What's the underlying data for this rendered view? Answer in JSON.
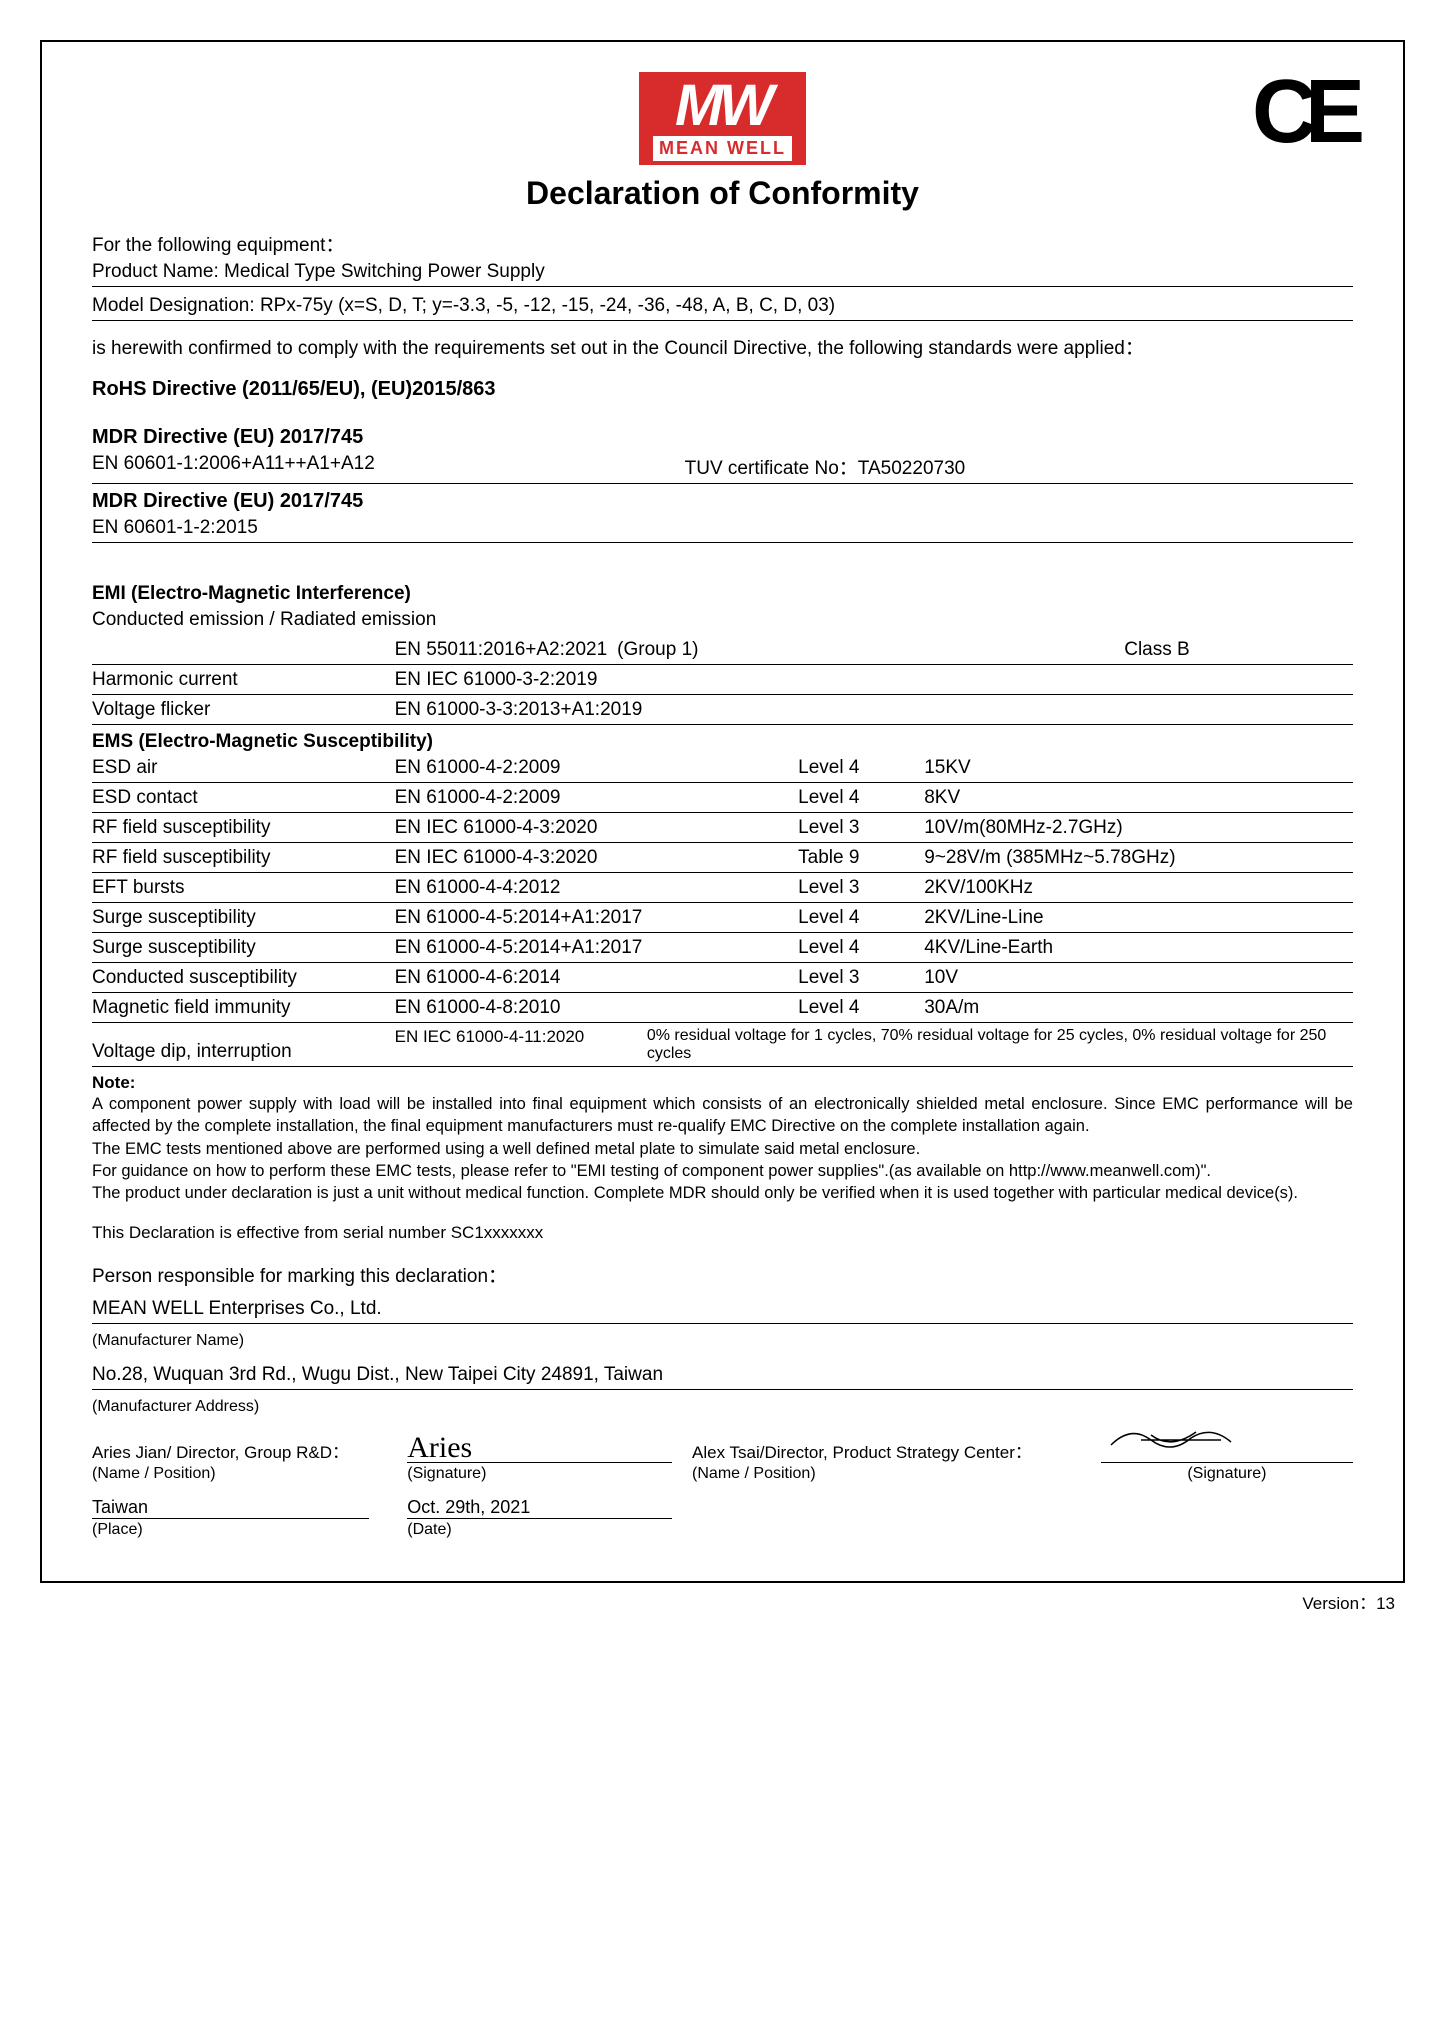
{
  "header": {
    "logo_mw": "MW",
    "logo_meanwell": "MEAN WELL",
    "ce": "CE"
  },
  "title": "Declaration of Conformity",
  "intro": "For the following equipment：",
  "product_name_label": "Product Name: ",
  "product_name": "Medical Type Switching Power Supply",
  "model_label": "Model Designation: ",
  "model": "RPx-75y (x=S, D, T; y=-3.3, -5, -12, -15, -24, -36, -48, A, B, C, D, 03)",
  "compliance": "is herewith confirmed to comply with the requirements set out in the Council Directive, the following standards were applied：",
  "rohs_heading": "RoHS Directive (2011/65/EU), (EU)2015/863",
  "mdr1": {
    "heading": "MDR Directive (EU) 2017/745",
    "std": "EN 60601-1:2006+A11++A1+A12",
    "cert": "TUV certificate No：TA50220730"
  },
  "mdr2": {
    "heading": "MDR Directive (EU) 2017/745",
    "std": "EN 60601-1-2:2015"
  },
  "emi": {
    "heading": "EMI (Electro-Magnetic Interference)",
    "conducted": "Conducted emission / Radiated emission",
    "row1_std": "EN 55011:2016+A2:2021",
    "row1_group": "(Group 1)",
    "row1_class": "Class B",
    "harmonic_label": "Harmonic current",
    "harmonic_std": "EN IEC 61000-3-2:2019",
    "flicker_label": "Voltage flicker",
    "flicker_std": "EN 61000-3-3:2013+A1:2019"
  },
  "ems": {
    "heading": "EMS (Electro-Magnetic Susceptibility)",
    "rows": [
      {
        "name": "ESD air",
        "std": "EN 61000-4-2:2009",
        "level": "Level 4",
        "val": "15KV"
      },
      {
        "name": "ESD contact",
        "std": "EN 61000-4-2:2009",
        "level": "Level 4",
        "val": "8KV"
      },
      {
        "name": "RF field susceptibility",
        "std": "EN IEC 61000-4-3:2020",
        "level": "Level 3",
        "val": "10V/m(80MHz-2.7GHz)"
      },
      {
        "name": "RF field susceptibility",
        "std": "EN IEC 61000-4-3:2020",
        "level": "Table 9",
        "val": "9~28V/m (385MHz~5.78GHz)"
      },
      {
        "name": "EFT bursts",
        "std": "EN 61000-4-4:2012",
        "level": "Level 3",
        "val": "2KV/100KHz"
      },
      {
        "name": "Surge susceptibility",
        "std": "EN 61000-4-5:2014+A1:2017",
        "level": "Level 4",
        "val": "2KV/Line-Line"
      },
      {
        "name": "Surge susceptibility",
        "std": "EN 61000-4-5:2014+A1:2017",
        "level": "Level 4",
        "val": "4KV/Line-Earth"
      },
      {
        "name": "Conducted susceptibility",
        "std": "EN 61000-4-6:2014",
        "level": "Level 3",
        "val": "10V"
      },
      {
        "name": "Magnetic field immunity",
        "std": "EN 61000-4-8:2010",
        "level": "Level 4",
        "val": "30A/m"
      }
    ],
    "dip_name": "Voltage dip, interruption",
    "dip_std": "EN IEC 61000-4-11:2020",
    "dip_desc": "0% residual voltage for 1 cycles, 70% residual voltage for 25 cycles, 0% residual voltage for 250 cycles"
  },
  "note": {
    "heading": "Note:",
    "p1": "A component power supply with load will be installed into final equipment which consists of an electronically shielded metal enclosure. Since EMC performance will be affected by the complete installation, the final equipment manufacturers must re-qualify EMC Directive on the complete installation again.",
    "p2": "The EMC tests mentioned above are performed using a well defined metal plate to simulate said metal enclosure.",
    "p3": "For guidance on how to perform these EMC tests, please refer to \"EMI testing of component power supplies\".(as available on http://www.meanwell.com)\".",
    "p4": "The product under declaration is just a unit without medical function. Complete MDR should only be verified when it is used together with particular medical device(s).",
    "effective": "This Declaration is effective from serial number SC1xxxxxxx"
  },
  "resp": {
    "intro": "Person responsible for marking this declaration：",
    "company": "MEAN WELL Enterprises Co., Ltd.",
    "company_label": "(Manufacturer Name)",
    "address": "No.28, Wuquan 3rd Rd., Wugu Dist., New Taipei City 24891, Taiwan",
    "address_label": "(Manufacturer Address)",
    "left_name": "Aries Jian/ Director, Group R&D：",
    "left_sig": "Aries",
    "right_name": "Alex Tsai/Director, Product Strategy Center：",
    "name_pos_label": "(Name / Position)",
    "sig_label": "(Signature)",
    "place": "Taiwan",
    "date": "Oct. 29th, 2021",
    "place_label": "(Place)",
    "date_label": "(Date)"
  },
  "version": "Version：13"
}
